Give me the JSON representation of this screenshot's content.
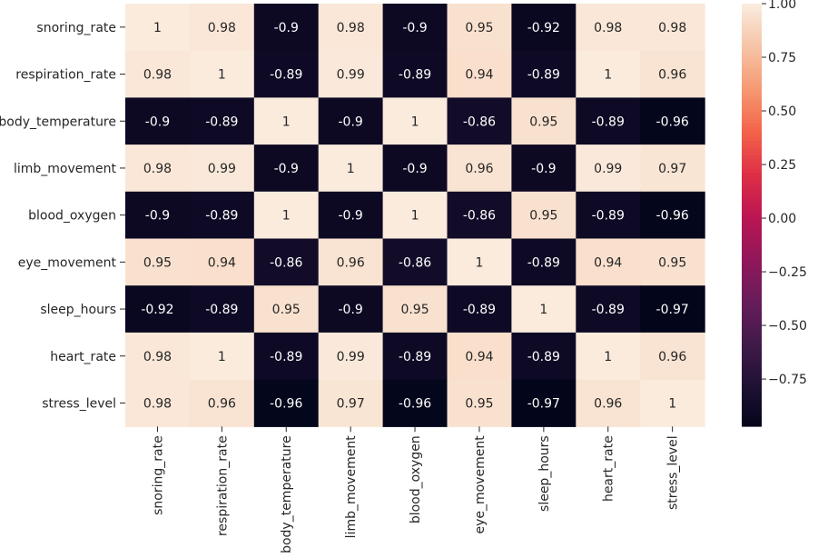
{
  "chart_data": {
    "type": "heatmap",
    "rows": [
      "snoring_rate",
      "respiration_rate",
      "body_temperature",
      "limb_movement",
      "blood_oxygen",
      "eye_movement",
      "sleep_hours",
      "heart_rate",
      "stress_level"
    ],
    "columns": [
      "snoring_rate",
      "respiration_rate",
      "body_temperature",
      "limb_movement",
      "blood_oxygen",
      "eye_movement",
      "sleep_hours",
      "heart_rate",
      "stress_level"
    ],
    "values": [
      [
        1,
        0.98,
        -0.9,
        0.98,
        -0.9,
        0.95,
        -0.92,
        0.98,
        0.98
      ],
      [
        0.98,
        1,
        -0.89,
        0.99,
        -0.89,
        0.94,
        -0.89,
        1,
        0.96
      ],
      [
        -0.9,
        -0.89,
        1,
        -0.9,
        1,
        -0.86,
        0.95,
        -0.89,
        -0.96
      ],
      [
        0.98,
        0.99,
        -0.9,
        1,
        -0.9,
        0.96,
        -0.9,
        0.99,
        0.97
      ],
      [
        -0.9,
        -0.89,
        1,
        -0.9,
        1,
        -0.86,
        0.95,
        -0.89,
        -0.96
      ],
      [
        0.95,
        0.94,
        -0.86,
        0.96,
        -0.86,
        1,
        -0.89,
        0.94,
        0.95
      ],
      [
        -0.92,
        -0.89,
        0.95,
        -0.9,
        0.95,
        -0.89,
        1,
        -0.89,
        -0.97
      ],
      [
        0.98,
        1,
        -0.89,
        0.99,
        -0.89,
        0.94,
        -0.89,
        1,
        0.96
      ],
      [
        0.98,
        0.96,
        -0.96,
        0.97,
        -0.96,
        0.95,
        -0.97,
        0.96,
        1
      ]
    ],
    "annotated": true,
    "colormap": "rocket",
    "vmin": -0.97,
    "vmax": 1,
    "colorbar_ticks": [
      1.0,
      0.75,
      0.5,
      0.25,
      0.0,
      -0.25,
      -0.5,
      -0.75
    ],
    "colorbar_tick_labels": [
      "1.00",
      "0.75",
      "0.50",
      "0.25",
      "0.00",
      "−0.25",
      "−0.50",
      "−0.75"
    ],
    "text_color_light": "#ffffff",
    "text_color_dark": "#262626"
  }
}
